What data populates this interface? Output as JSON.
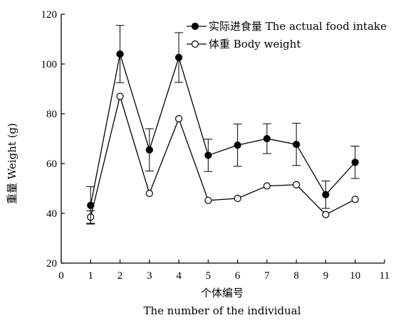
{
  "chart_data": {
    "type": "line",
    "title": "",
    "xlabel": "个体编号",
    "xlabel_en": "The number of the individual",
    "ylabel": "重量 Weight (g)",
    "xlim": [
      0,
      11
    ],
    "ylim": [
      20,
      120
    ],
    "x_ticks": [
      0,
      1,
      2,
      3,
      4,
      5,
      6,
      7,
      8,
      9,
      10,
      11
    ],
    "y_ticks": [
      20,
      40,
      60,
      80,
      100,
      120
    ],
    "grid": false,
    "legend_position": "top-right",
    "x": [
      1,
      2,
      3,
      4,
      5,
      6,
      7,
      8,
      9,
      10
    ],
    "series": [
      {
        "name": "实际进食量 The actual food intake",
        "marker": "filled-circle",
        "color": "#000000",
        "values": [
          43.2,
          104.0,
          65.5,
          102.6,
          63.3,
          67.4,
          70.0,
          67.7,
          47.5,
          60.5
        ],
        "error": [
          7.5,
          11.5,
          8.5,
          10.0,
          6.5,
          8.5,
          6.0,
          8.5,
          5.5,
          6.5
        ]
      },
      {
        "name": "体重 Body weight",
        "marker": "open-circle",
        "color": "#000000",
        "values": [
          38.5,
          87.0,
          48.0,
          78.0,
          45.2,
          46.0,
          51.0,
          51.5,
          39.5,
          45.6
        ],
        "error": [
          2.5,
          0,
          0,
          0,
          0,
          0,
          0,
          0,
          0,
          0
        ]
      }
    ]
  }
}
